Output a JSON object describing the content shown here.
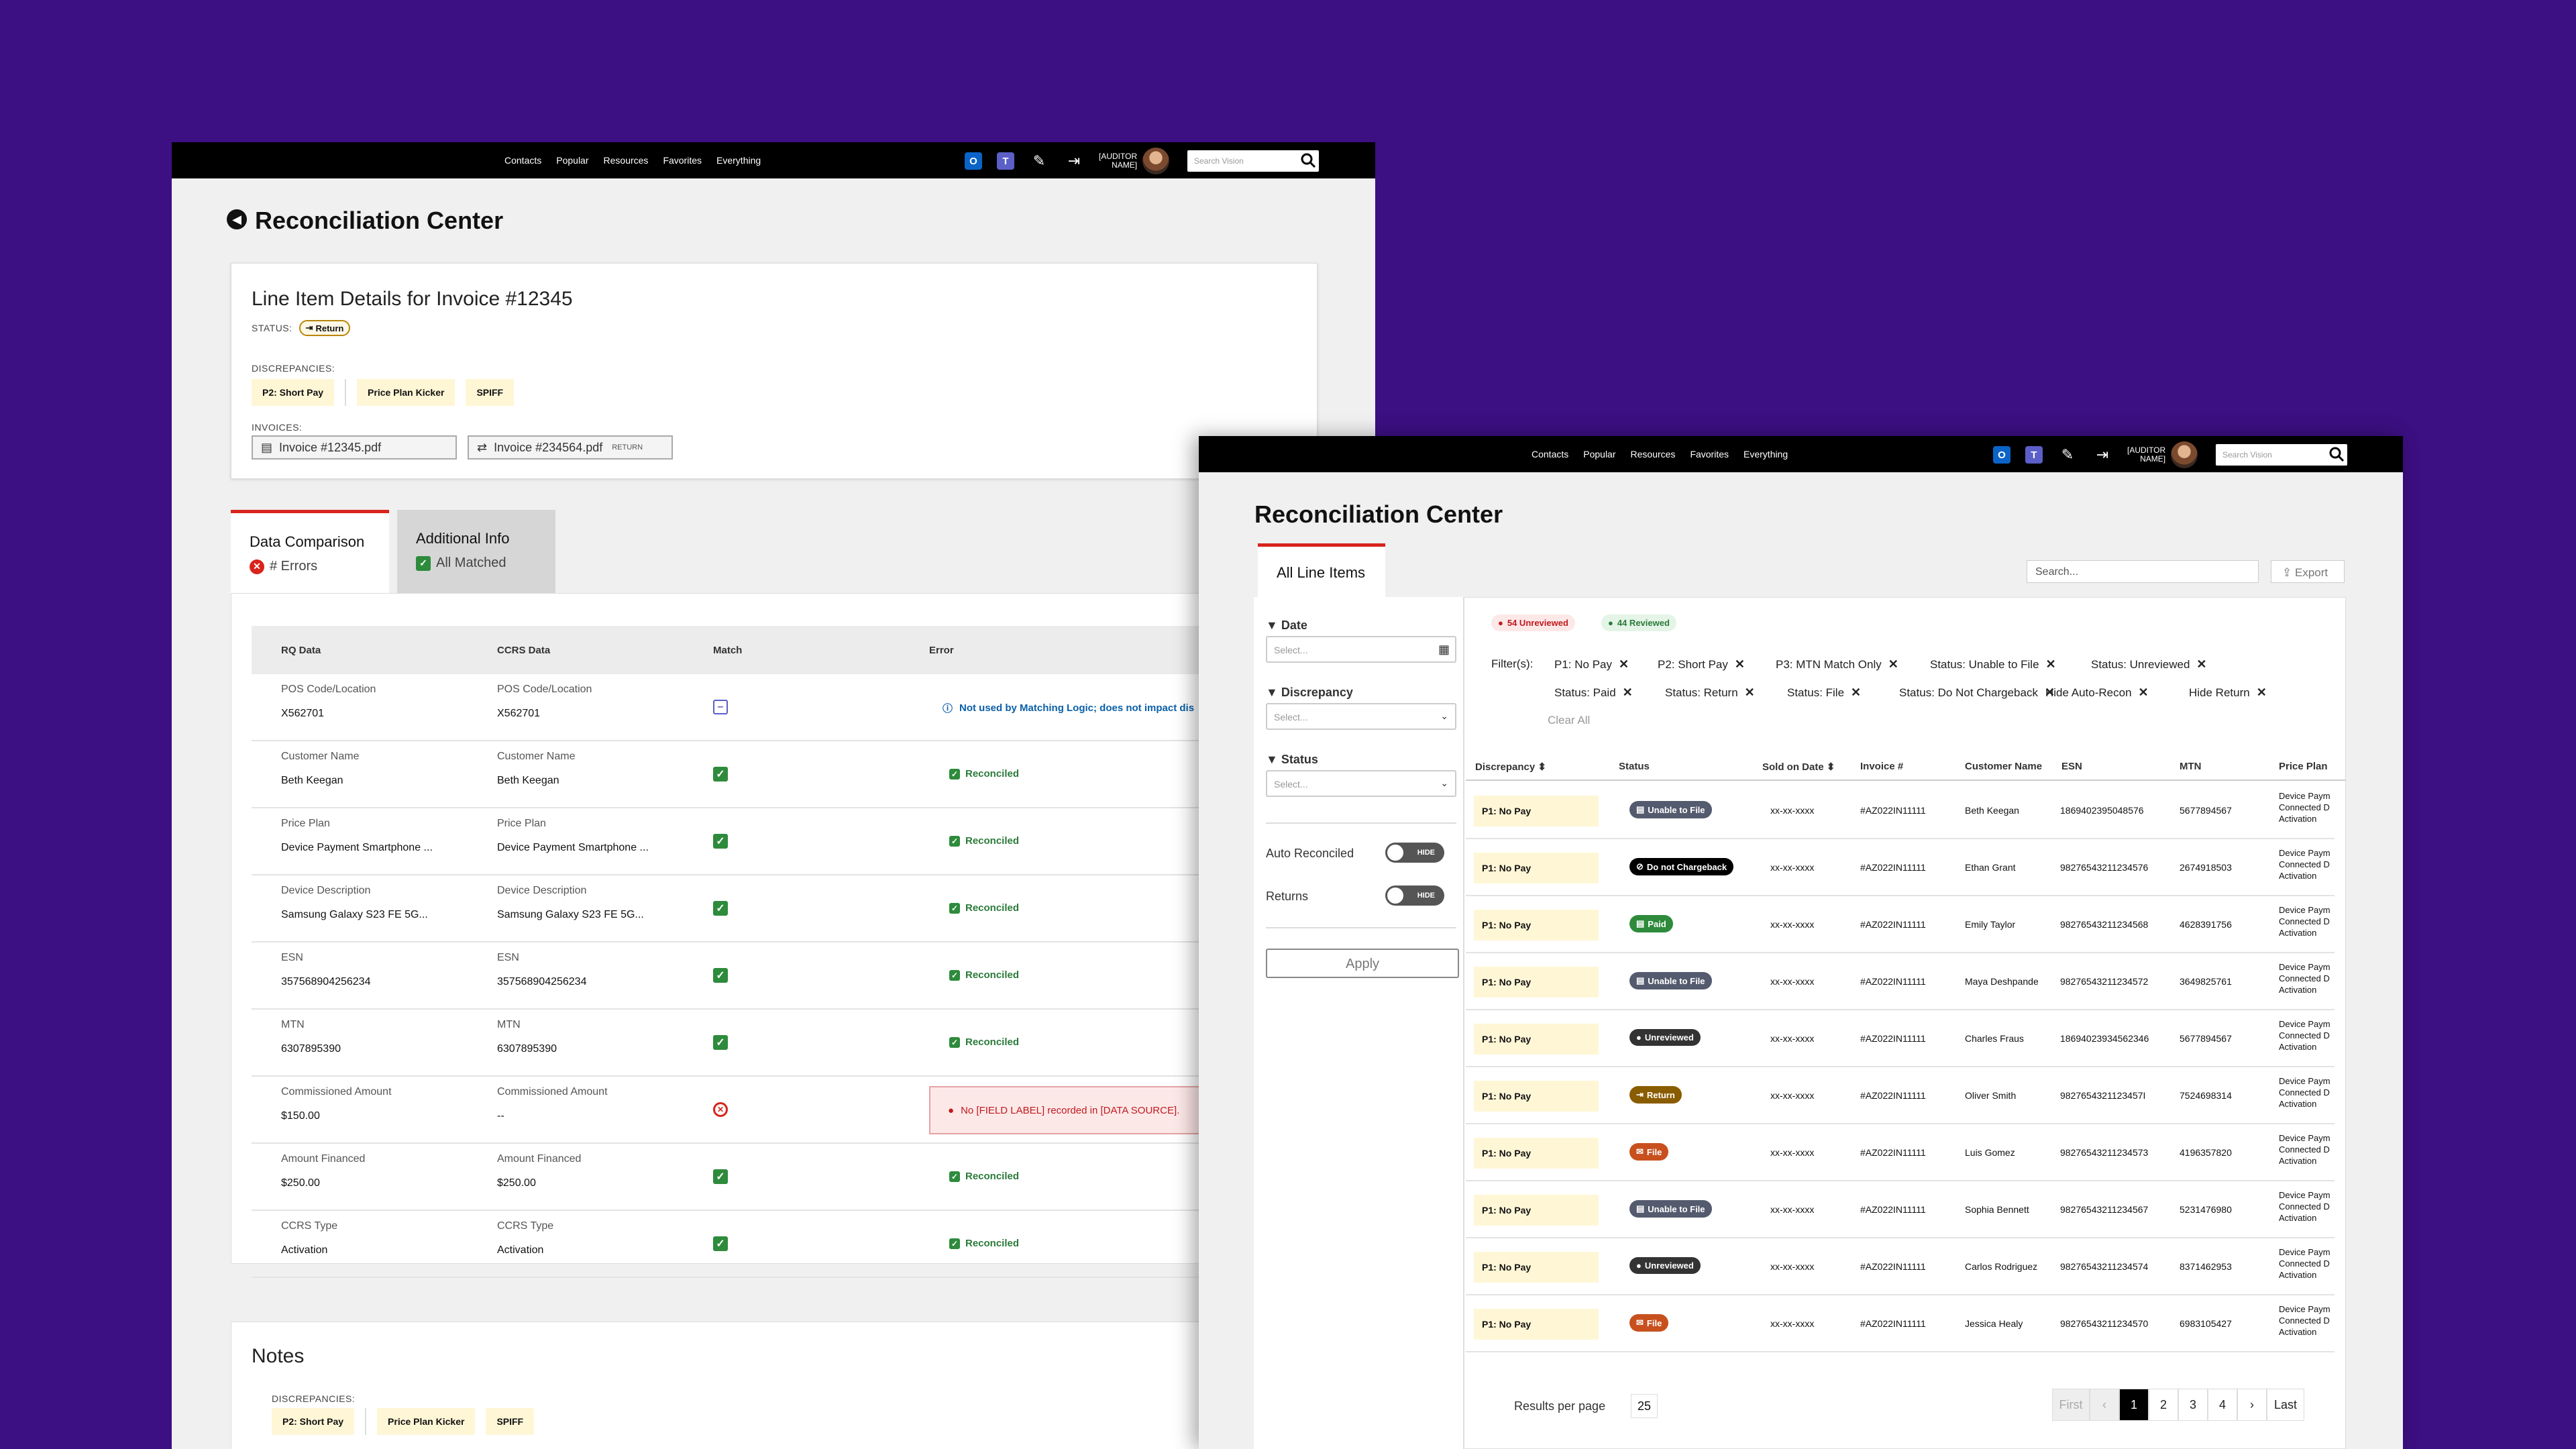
{
  "nav_links": [
    "Contacts",
    "Popular",
    "Resources",
    "Favorites",
    "Everything"
  ],
  "auditor_name": [
    "[AUDITOR",
    "NAME]"
  ],
  "search_placeholder": "Search Vision",
  "page_title": "Reconciliation Center",
  "invoice_card": {
    "heading": "Line Item Details for Invoice #12345",
    "status_label": "STATUS:",
    "status_value": "Return",
    "discrepancies_label": "DISCREPANCIES:",
    "discrepancies": [
      "P2: Short Pay",
      "Price Plan Kicker",
      "SPIFF"
    ],
    "invoices_label": "INVOICES:",
    "invoice_1": "Invoice #12345.pdf",
    "invoice_2": "Invoice #234564.pdf",
    "invoice_2_tag": "RETURN"
  },
  "tabs": {
    "data_comparison": {
      "label": "Data Comparison",
      "sub": "# Errors"
    },
    "additional_info": {
      "label": "Additional Info",
      "sub": "All Matched"
    }
  },
  "comparison_headers": [
    "RQ Data",
    "CCRS Data",
    "Match",
    "Error"
  ],
  "comparison_rows": [
    {
      "label": "POS Code/Location",
      "rq": "X562701",
      "ccrs": "X562701",
      "match": "partial",
      "error": "Not used by Matching Logic; does not impact dis"
    },
    {
      "label": "Customer Name",
      "rq": "Beth Keegan",
      "ccrs": "Beth Keegan",
      "match": "ok",
      "error": "Reconciled"
    },
    {
      "label": "Price Plan",
      "rq": "Device Payment Smartphone ...",
      "ccrs": "Device Payment Smartphone ...",
      "match": "ok",
      "error": "Reconciled"
    },
    {
      "label": "Device Description",
      "rq": "Samsung Galaxy S23 FE 5G...",
      "ccrs": "Samsung Galaxy S23 FE 5G...",
      "match": "ok",
      "error": "Reconciled"
    },
    {
      "label": "ESN",
      "rq": "357568904256234",
      "ccrs": "357568904256234",
      "match": "ok",
      "error": "Reconciled"
    },
    {
      "label": "MTN",
      "rq": "6307895390",
      "ccrs": "6307895390",
      "match": "ok",
      "error": "Reconciled"
    },
    {
      "label": "Commissioned Amount",
      "rq": "$150.00",
      "ccrs": "--",
      "match": "fail",
      "error": "No [FIELD LABEL] recorded in [DATA SOURCE]."
    },
    {
      "label": "Amount Financed",
      "rq": "$250.00",
      "ccrs": "$250.00",
      "match": "ok",
      "error": "Reconciled"
    },
    {
      "label": "CCRS Type",
      "rq": "Activation",
      "ccrs": "Activation",
      "match": "ok",
      "error": "Reconciled"
    }
  ],
  "notes": {
    "heading": "Notes",
    "discrepancies_label": "DISCREPANCIES:",
    "discrepancies": [
      "P2: Short Pay",
      "Price Plan Kicker",
      "SPIFF"
    ]
  },
  "w2": {
    "tab_label": "All Line Items",
    "search_placeholder": "Search...",
    "export_label": "Export",
    "filters": {
      "date_label": "Date",
      "date_placeholder": "Select...",
      "discrepancy_label": "Discrepancy",
      "discrepancy_placeholder": "Select...",
      "status_label": "Status",
      "status_placeholder": "Select...",
      "auto_reconciled_label": "Auto Reconciled",
      "auto_reconciled_toggle": "HIDE",
      "returns_label": "Returns",
      "returns_toggle": "HIDE",
      "apply_label": "Apply"
    },
    "unreviewed_badge": "54 Unreviewed",
    "reviewed_badge": "44 Reviewed",
    "filters_label": "Filter(s):",
    "filter_tags_row1": [
      "P1: No Pay",
      "P2: Short Pay",
      "P3: MTN Match Only",
      "Status: Unable to File",
      "Status: Unreviewed"
    ],
    "filter_tags_row2": [
      "Status: Paid",
      "Status: Return",
      "Status: File",
      "Status: Do Not Chargeback",
      "Hide Auto-Recon",
      "Hide Return"
    ],
    "clear_all": "Clear All",
    "table_headers": [
      "Discrepancy",
      "Status",
      "Sold on Date",
      "Invoice #",
      "Customer Name",
      "ESN",
      "MTN",
      "Price Plan"
    ],
    "rows": [
      {
        "disc": "P1: No Pay",
        "status": "Unable to File",
        "status_key": "unable",
        "date": "xx-xx-xxxx",
        "invoice": "#AZ022IN11111",
        "customer": "Beth Keegan",
        "esn": "1869402395048576",
        "mtn": "5677894567",
        "plan": [
          "Device Paym",
          "Connected D",
          "Activation"
        ]
      },
      {
        "disc": "P1: No Pay",
        "status": "Do not Chargeback",
        "status_key": "dnc",
        "date": "xx-xx-xxxx",
        "invoice": "#AZ022IN11111",
        "customer": "Ethan Grant",
        "esn": "98276543211234576",
        "mtn": "2674918503",
        "plan": [
          "Device Paym",
          "Connected D",
          "Activation"
        ]
      },
      {
        "disc": "P1: No Pay",
        "status": "Paid",
        "status_key": "paid",
        "date": "xx-xx-xxxx",
        "invoice": "#AZ022IN11111",
        "customer": "Emily Taylor",
        "esn": "98276543211234568",
        "mtn": "4628391756",
        "plan": [
          "Device Paym",
          "Connected D",
          "Activation"
        ]
      },
      {
        "disc": "P1: No Pay",
        "status": "Unable to File",
        "status_key": "unable",
        "date": "xx-xx-xxxx",
        "invoice": "#AZ022IN11111",
        "customer": "Maya Deshpande",
        "esn": "98276543211234572",
        "mtn": "3649825761",
        "plan": [
          "Device Paym",
          "Connected D",
          "Activation"
        ]
      },
      {
        "disc": "P1: No Pay",
        "status": "Unreviewed",
        "status_key": "unrev",
        "date": "xx-xx-xxxx",
        "invoice": "#AZ022IN11111",
        "customer": "Charles Fraus",
        "esn": "18694023934562346",
        "mtn": "5677894567",
        "plan": [
          "Device Paym",
          "Connected D",
          "Activation"
        ]
      },
      {
        "disc": "P1: No Pay",
        "status": "Return",
        "status_key": "return",
        "date": "xx-xx-xxxx",
        "invoice": "#AZ022IN11111",
        "customer": "Oliver Smith",
        "esn": "9827654321123457I",
        "mtn": "7524698314",
        "plan": [
          "Device Paym",
          "Connected D",
          "Activation"
        ]
      },
      {
        "disc": "P1: No Pay",
        "status": "File",
        "status_key": "file",
        "date": "xx-xx-xxxx",
        "invoice": "#AZ022IN11111",
        "customer": "Luis Gomez",
        "esn": "98276543211234573",
        "mtn": "4196357820",
        "plan": [
          "Device Paym",
          "Connected D",
          "Activation"
        ]
      },
      {
        "disc": "P1: No Pay",
        "status": "Unable to File",
        "status_key": "unable",
        "date": "xx-xx-xxxx",
        "invoice": "#AZ022IN11111",
        "customer": "Sophia Bennett",
        "esn": "98276543211234567",
        "mtn": "5231476980",
        "plan": [
          "Device Paym",
          "Connected D",
          "Activation"
        ]
      },
      {
        "disc": "P1: No Pay",
        "status": "Unreviewed",
        "status_key": "unrev",
        "date": "xx-xx-xxxx",
        "invoice": "#AZ022IN11111",
        "customer": "Carlos Rodriguez",
        "esn": "98276543211234574",
        "mtn": "8371462953",
        "plan": [
          "Device Paym",
          "Connected D",
          "Activation"
        ]
      },
      {
        "disc": "P1: No Pay",
        "status": "File",
        "status_key": "file",
        "date": "xx-xx-xxxx",
        "invoice": "#AZ022IN11111",
        "customer": "Jessica Healy",
        "esn": "98276543211234570",
        "mtn": "6983105427",
        "plan": [
          "Device Paym",
          "Connected D",
          "Activation"
        ]
      }
    ],
    "results_per_page_label": "Results per page",
    "results_per_page_value": "25",
    "pagination": {
      "first": "First",
      "pages": [
        "1",
        "2",
        "3",
        "4"
      ],
      "last": "Last",
      "current": "1"
    }
  },
  "colors": {
    "background": "#3c0f82",
    "topbar": "#000000",
    "accent_red": "#d8241c",
    "success": "#2e8b3c",
    "chip_bg": "#fff6d6",
    "status_unable": "#555b6e",
    "status_dnc": "#000000",
    "status_paid": "#2e8b3c",
    "status_unrev": "#333333",
    "status_return": "#8a5c00",
    "status_file": "#c8501e"
  }
}
